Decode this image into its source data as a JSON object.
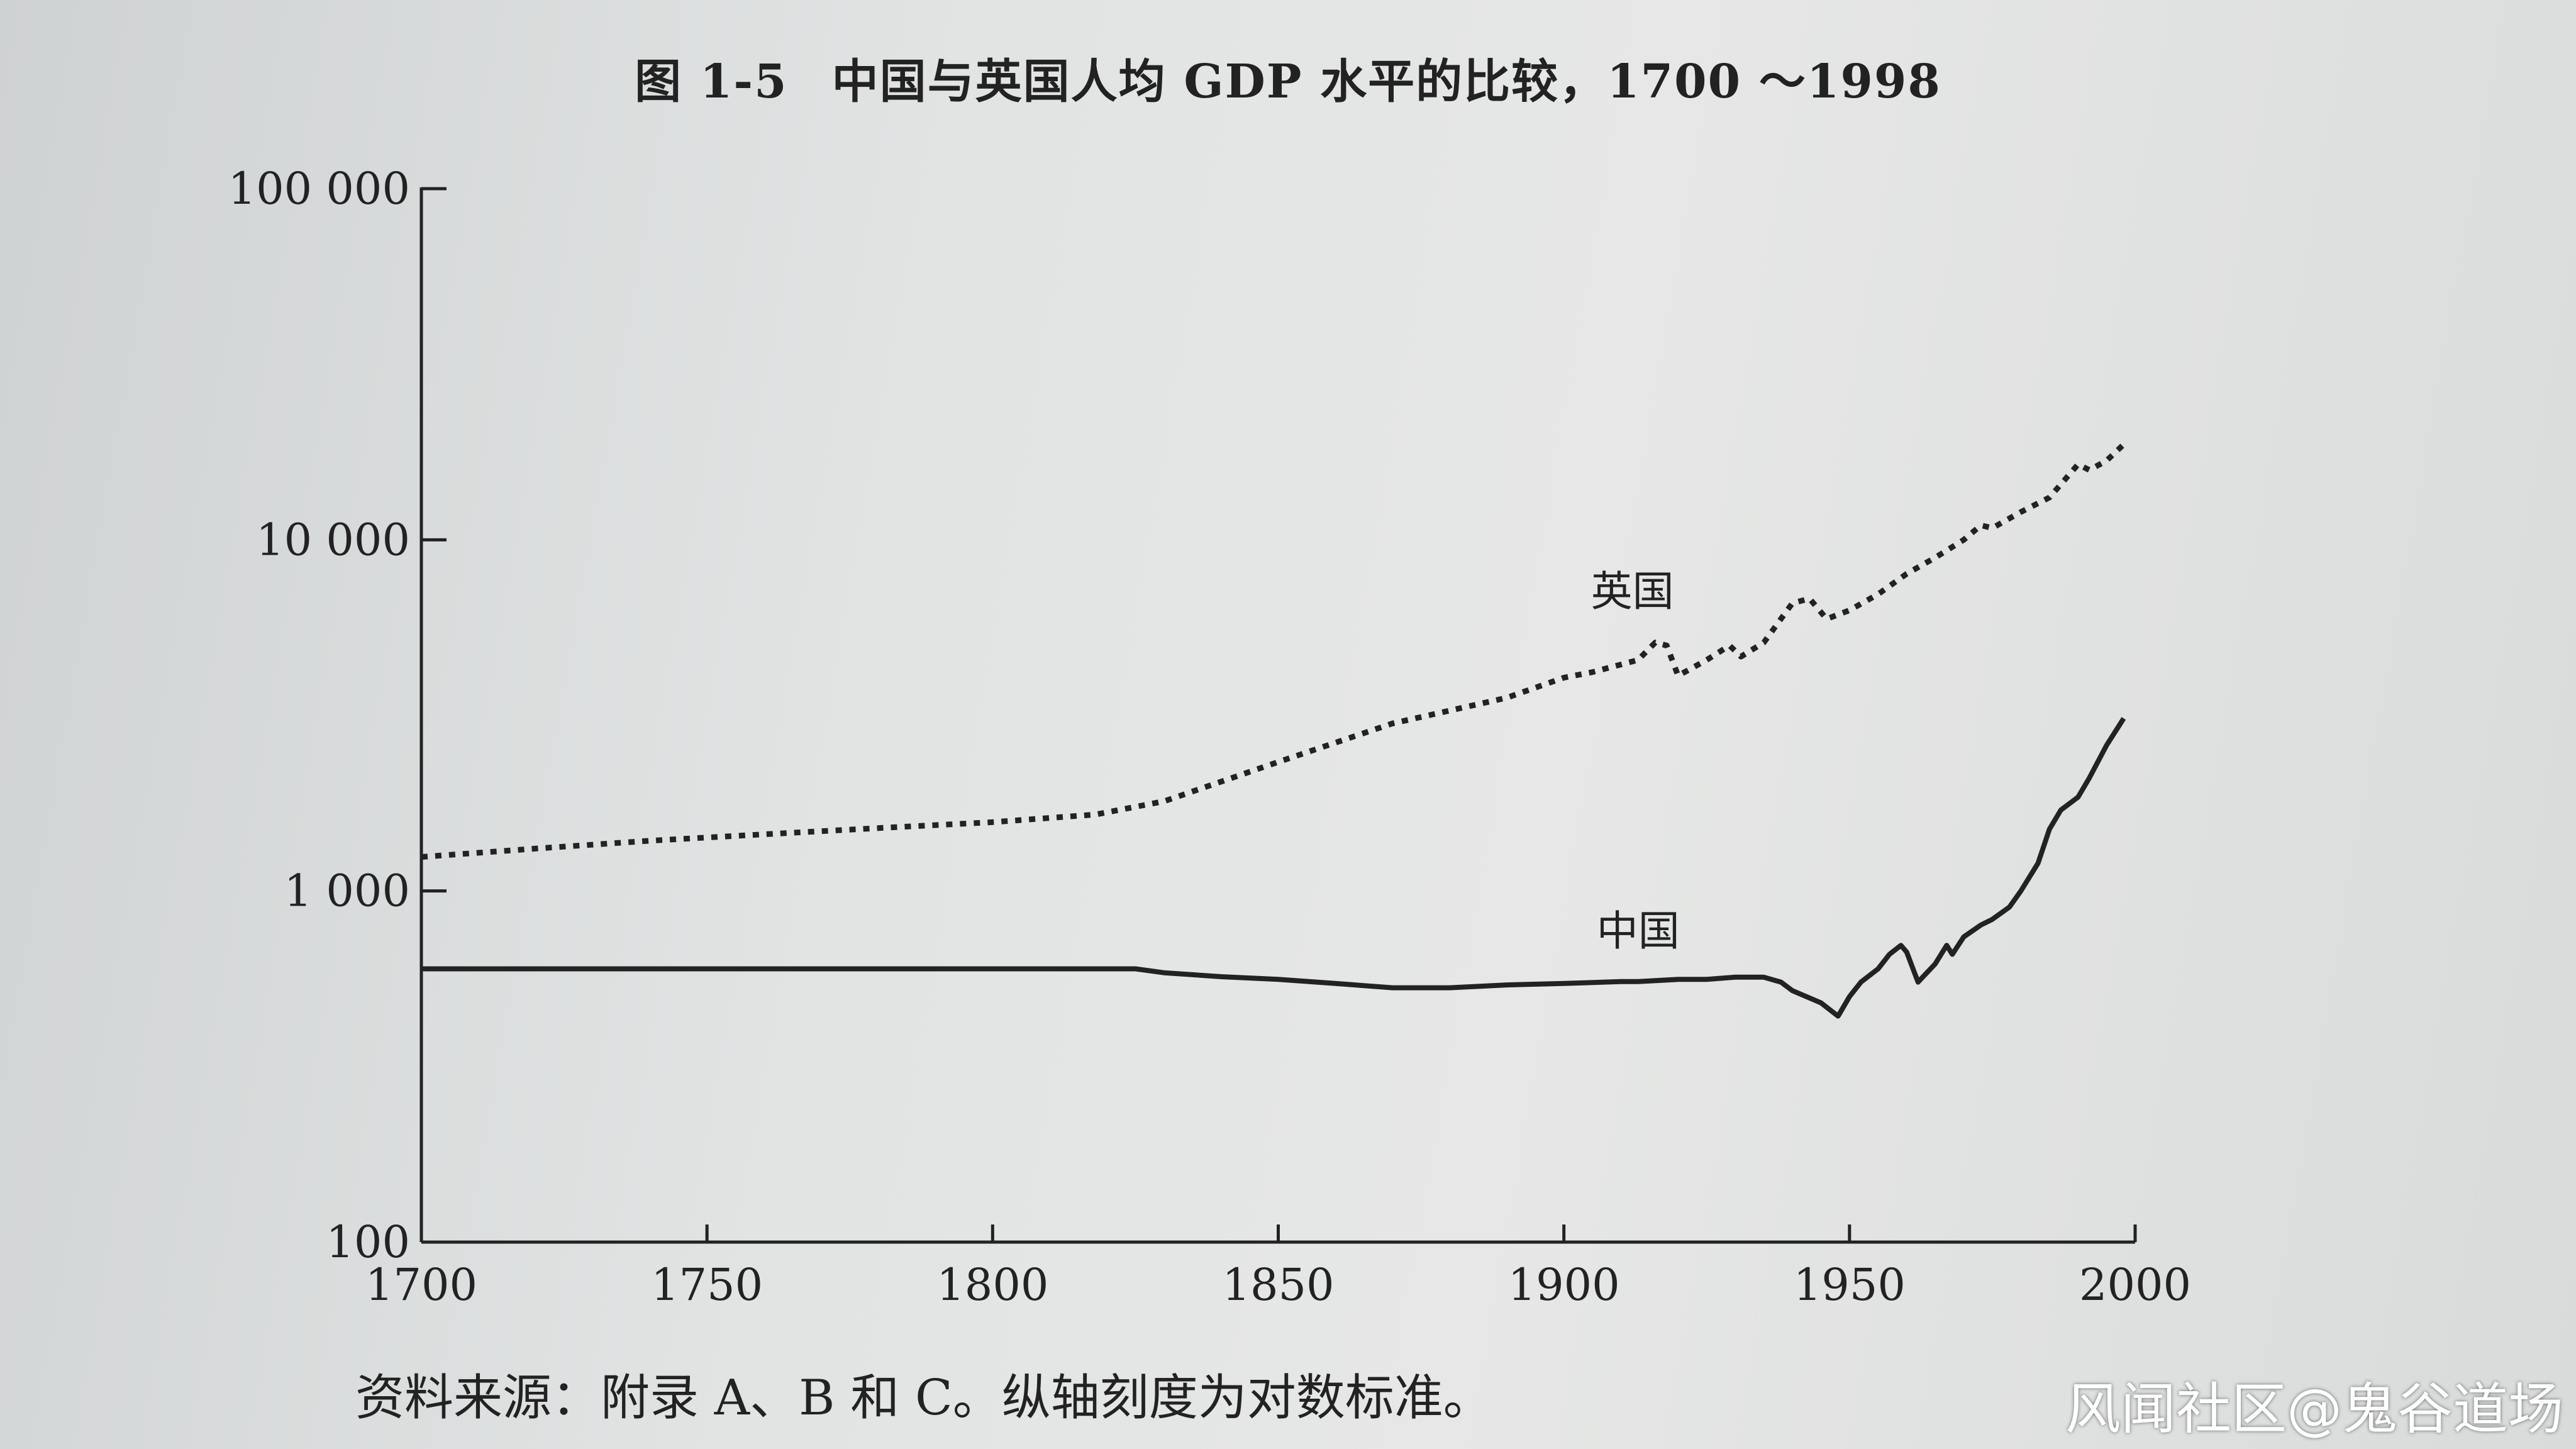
{
  "page": {
    "figure_number": "图 1-5",
    "title": "中国与英国人均 GDP 水平的比较，1700 ～1998",
    "note": "资料来源：附录 A、B 和 C。纵轴刻度为对数标准。",
    "watermark": "风闻社区@鬼谷道场"
  },
  "chart_data": {
    "type": "line",
    "title": "中国与英国人均 GDP 水平的比较，1700 ～1998",
    "xlabel": "",
    "ylabel": "",
    "xlim": [
      1700,
      2000
    ],
    "ylim": [
      100,
      100000
    ],
    "yscale": "log",
    "grid": false,
    "x_ticks": [
      1700,
      1750,
      1800,
      1850,
      1900,
      1950,
      2000
    ],
    "x_tick_labels": [
      "1700",
      "1750",
      "1800",
      "1850",
      "1900",
      "1950",
      "2000"
    ],
    "y_ticks": [
      100,
      1000,
      10000,
      100000
    ],
    "y_tick_labels": [
      "100",
      "1 000",
      "10 000",
      "100 000"
    ],
    "series": [
      {
        "name": "英国",
        "style": "dotted",
        "color": "#222222",
        "label_position": [
          1912,
          6500
        ],
        "points": [
          [
            1700,
            1250
          ],
          [
            1720,
            1320
          ],
          [
            1740,
            1390
          ],
          [
            1760,
            1450
          ],
          [
            1780,
            1510
          ],
          [
            1800,
            1570
          ],
          [
            1818,
            1650
          ],
          [
            1830,
            1800
          ],
          [
            1850,
            2330
          ],
          [
            1870,
            3000
          ],
          [
            1890,
            3550
          ],
          [
            1900,
            4050
          ],
          [
            1905,
            4200
          ],
          [
            1913,
            4550
          ],
          [
            1916,
            5100
          ],
          [
            1918,
            5000
          ],
          [
            1920,
            4100
          ],
          [
            1925,
            4550
          ],
          [
            1929,
            5000
          ],
          [
            1931,
            4650
          ],
          [
            1935,
            5100
          ],
          [
            1940,
            6600
          ],
          [
            1943,
            6800
          ],
          [
            1946,
            5950
          ],
          [
            1950,
            6300
          ],
          [
            1955,
            7000
          ],
          [
            1960,
            8000
          ],
          [
            1965,
            8900
          ],
          [
            1970,
            10000
          ],
          [
            1973,
            11000
          ],
          [
            1975,
            10800
          ],
          [
            1980,
            12000
          ],
          [
            1985,
            13200
          ],
          [
            1990,
            16400
          ],
          [
            1992,
            15800
          ],
          [
            1995,
            16800
          ],
          [
            1998,
            18700
          ]
        ]
      },
      {
        "name": "中国",
        "style": "solid",
        "color": "#222222",
        "label_position": [
          1913,
          700
        ],
        "points": [
          [
            1700,
            600
          ],
          [
            1820,
            600
          ],
          [
            1825,
            600
          ],
          [
            1830,
            585
          ],
          [
            1840,
            570
          ],
          [
            1850,
            560
          ],
          [
            1860,
            545
          ],
          [
            1870,
            530
          ],
          [
            1880,
            530
          ],
          [
            1890,
            540
          ],
          [
            1900,
            545
          ],
          [
            1910,
            552
          ],
          [
            1913,
            552
          ],
          [
            1920,
            560
          ],
          [
            1925,
            560
          ],
          [
            1930,
            568
          ],
          [
            1935,
            568
          ],
          [
            1938,
            550
          ],
          [
            1940,
            520
          ],
          [
            1945,
            480
          ],
          [
            1948,
            440
          ],
          [
            1950,
            500
          ],
          [
            1952,
            550
          ],
          [
            1955,
            600
          ],
          [
            1957,
            660
          ],
          [
            1959,
            700
          ],
          [
            1960,
            670
          ],
          [
            1962,
            550
          ],
          [
            1965,
            620
          ],
          [
            1967,
            700
          ],
          [
            1968,
            660
          ],
          [
            1970,
            740
          ],
          [
            1973,
            800
          ],
          [
            1975,
            830
          ],
          [
            1978,
            900
          ],
          [
            1980,
            1000
          ],
          [
            1983,
            1200
          ],
          [
            1985,
            1500
          ],
          [
            1987,
            1700
          ],
          [
            1990,
            1850
          ],
          [
            1992,
            2100
          ],
          [
            1995,
            2600
          ],
          [
            1998,
            3100
          ]
        ]
      }
    ]
  }
}
